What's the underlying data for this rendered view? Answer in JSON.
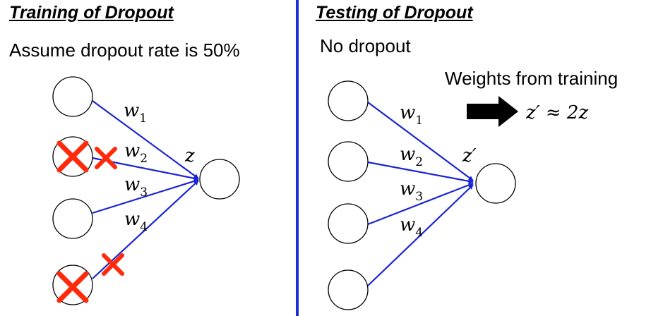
{
  "colors": {
    "divider": "#1f2bd6",
    "edge": "#1a24d4",
    "drop_mark": "#ff2a0a",
    "arrow": "#000000"
  },
  "training": {
    "title": "Training of Dropout",
    "subtitle": "Assume dropout rate is 50%",
    "output_label": "z",
    "weights": [
      {
        "base": "w",
        "sub": "1"
      },
      {
        "base": "w",
        "sub": "2"
      },
      {
        "base": "w",
        "sub": "3"
      },
      {
        "base": "w",
        "sub": "4"
      }
    ],
    "dropped_inputs": [
      2,
      4
    ]
  },
  "testing": {
    "title": "Testing of Dropout",
    "subtitle": "No dropout",
    "output_label": "z′",
    "weights": [
      {
        "base": "w",
        "sub": "1"
      },
      {
        "base": "w",
        "sub": "2"
      },
      {
        "base": "w",
        "sub": "3"
      },
      {
        "base": "w",
        "sub": "4"
      }
    ],
    "note": "Weights from training",
    "relation": "z′ ≈ 2z"
  }
}
